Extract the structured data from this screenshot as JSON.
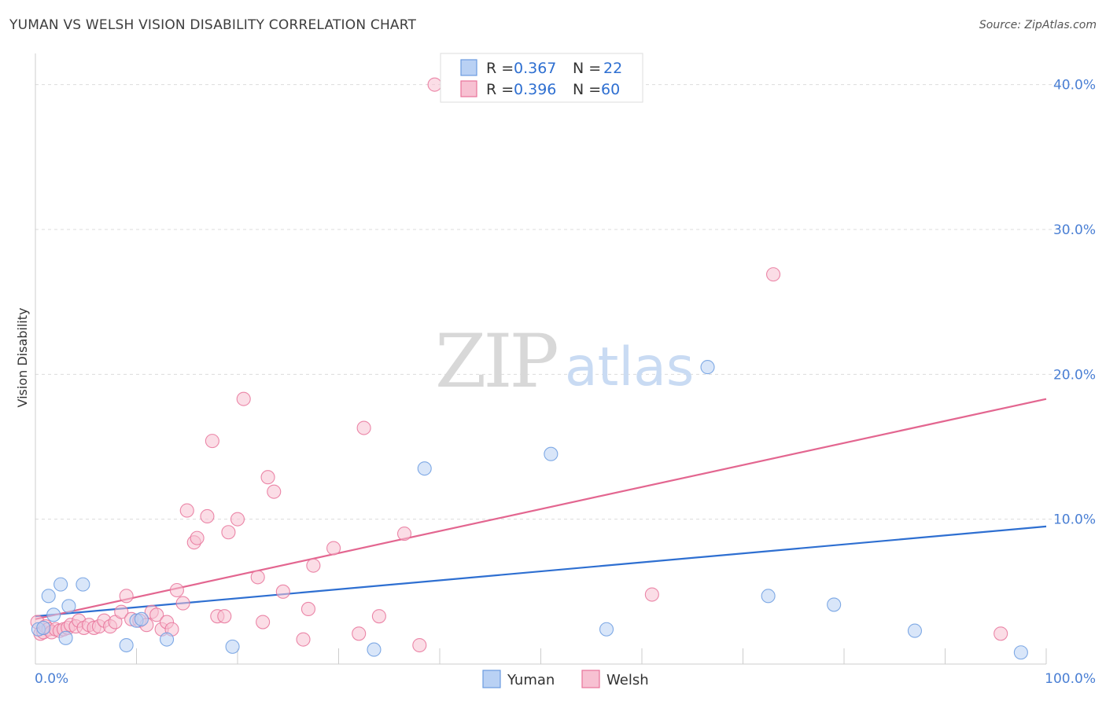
{
  "title": "YUMAN VS WELSH VISION DISABILITY CORRELATION CHART",
  "source": "Source: ZipAtlas.com",
  "watermark": {
    "zip": "ZIP",
    "atlas": "atlas"
  },
  "colors": {
    "yuman": "#6a9be0",
    "yuman_fill": "#b9d1f4",
    "welsh": "#e8739a",
    "welsh_fill": "#f7c1d2",
    "yuman_line": "#2e6fd1",
    "welsh_line": "#e36690",
    "accent_text": "#2e6fd1"
  },
  "legend": {
    "rows": [
      {
        "r_label": "R =",
        "r_value": "0.367",
        "n_label": "N =",
        "n_value": "22"
      },
      {
        "r_label": "R =",
        "r_value": "0.396",
        "n_label": "N =",
        "n_value": "60"
      }
    ]
  },
  "bottom_legend": [
    "Yuman",
    "Welsh"
  ],
  "chart_data": {
    "type": "scatter",
    "title": "YUMAN VS WELSH VISION DISABILITY CORRELATION CHART",
    "xlabel": "",
    "ylabel": "Vision Disability",
    "xlim": [
      0,
      100
    ],
    "ylim": [
      0,
      41.5
    ],
    "x_tick_labels": [
      "0.0%",
      "100.0%"
    ],
    "y_ticks": [
      10,
      20,
      30,
      40
    ],
    "y_tick_labels": [
      "10.0%",
      "20.0%",
      "30.0%",
      "40.0%"
    ],
    "grid": true,
    "legend_position": "top-center",
    "series": [
      {
        "name": "Yuman",
        "r": 0.367,
        "n": 22,
        "trend": {
          "x": [
            0,
            100
          ],
          "y": [
            3.3,
            9.5
          ]
        },
        "points": [
          [
            0.3,
            2.4
          ],
          [
            0.8,
            2.5
          ],
          [
            1.3,
            4.7
          ],
          [
            1.8,
            3.4
          ],
          [
            2.5,
            5.5
          ],
          [
            3.0,
            1.8
          ],
          [
            3.3,
            4.0
          ],
          [
            4.7,
            5.5
          ],
          [
            9.0,
            1.3
          ],
          [
            10.0,
            3.0
          ],
          [
            10.5,
            3.1
          ],
          [
            13.0,
            1.7
          ],
          [
            19.5,
            1.2
          ],
          [
            33.5,
            1.0
          ],
          [
            38.5,
            13.5
          ],
          [
            51.0,
            14.5
          ],
          [
            56.5,
            2.4
          ],
          [
            66.5,
            20.5
          ],
          [
            72.5,
            4.7
          ],
          [
            79.0,
            4.1
          ],
          [
            87.0,
            2.3
          ],
          [
            97.5,
            0.8
          ]
        ]
      },
      {
        "name": "Welsh",
        "r": 0.396,
        "n": 60,
        "trend": {
          "x": [
            0,
            100
          ],
          "y": [
            3.1,
            18.3
          ]
        },
        "points": [
          [
            0.2,
            2.9
          ],
          [
            0.5,
            2.1
          ],
          [
            0.8,
            2.2
          ],
          [
            1.0,
            2.6
          ],
          [
            1.3,
            2.4
          ],
          [
            1.6,
            2.2
          ],
          [
            2.0,
            2.4
          ],
          [
            2.4,
            2.3
          ],
          [
            2.8,
            2.4
          ],
          [
            3.2,
            2.5
          ],
          [
            3.5,
            2.7
          ],
          [
            4.0,
            2.6
          ],
          [
            4.3,
            3.0
          ],
          [
            4.8,
            2.5
          ],
          [
            5.3,
            2.7
          ],
          [
            5.8,
            2.5
          ],
          [
            6.3,
            2.6
          ],
          [
            6.8,
            3.0
          ],
          [
            7.4,
            2.6
          ],
          [
            7.9,
            2.9
          ],
          [
            8.5,
            3.6
          ],
          [
            9.0,
            4.7
          ],
          [
            9.5,
            3.1
          ],
          [
            10.3,
            3.0
          ],
          [
            11.0,
            2.7
          ],
          [
            11.5,
            3.6
          ],
          [
            12.0,
            3.4
          ],
          [
            12.5,
            2.4
          ],
          [
            13.0,
            2.9
          ],
          [
            13.5,
            2.4
          ],
          [
            14.0,
            5.1
          ],
          [
            14.6,
            4.2
          ],
          [
            15.0,
            10.6
          ],
          [
            15.7,
            8.4
          ],
          [
            16.0,
            8.7
          ],
          [
            17.0,
            10.2
          ],
          [
            17.5,
            15.4
          ],
          [
            18.0,
            3.3
          ],
          [
            18.7,
            3.3
          ],
          [
            19.1,
            9.1
          ],
          [
            20.0,
            10.0
          ],
          [
            20.6,
            18.3
          ],
          [
            22.0,
            6.0
          ],
          [
            22.5,
            2.9
          ],
          [
            23.0,
            12.9
          ],
          [
            23.6,
            11.9
          ],
          [
            24.5,
            5.0
          ],
          [
            26.5,
            1.7
          ],
          [
            27.0,
            3.8
          ],
          [
            27.5,
            6.8
          ],
          [
            29.5,
            8.0
          ],
          [
            32.0,
            2.1
          ],
          [
            32.5,
            16.3
          ],
          [
            34.0,
            3.3
          ],
          [
            36.5,
            9.0
          ],
          [
            38.0,
            1.3
          ],
          [
            39.5,
            40.0
          ],
          [
            61.0,
            4.8
          ],
          [
            73.0,
            26.9
          ],
          [
            95.5,
            2.1
          ]
        ]
      }
    ]
  }
}
